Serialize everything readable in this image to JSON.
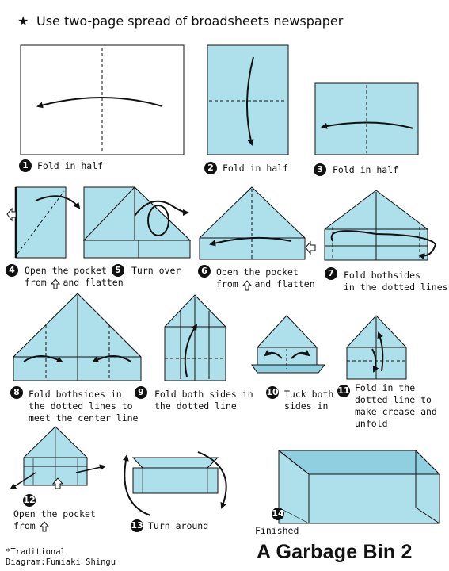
{
  "header": {
    "star_symbol": "★",
    "instruction": "Use two-page spread of broadsheets newspaper"
  },
  "steps": [
    {
      "number": "1",
      "caption": "Fold in half"
    },
    {
      "number": "2",
      "caption": "Fold in half"
    },
    {
      "number": "3",
      "caption": "Fold in half"
    },
    {
      "number": "4",
      "caption": "Open the pocket\nfrom   and flatten"
    },
    {
      "number": "5",
      "caption": "Turn over"
    },
    {
      "number": "6",
      "caption": "Open the pocket\nfrom   and flatten"
    },
    {
      "number": "7",
      "caption": "Fold bothsides\nin the dotted lines"
    },
    {
      "number": "8",
      "caption": "Fold bothsides in\nthe dotted lines to\nmeet the center line"
    },
    {
      "number": "9",
      "caption": "Fold both sides in\nthe dotted line"
    },
    {
      "number": "10",
      "caption": "Tuck both\nsides in"
    },
    {
      "number": "11",
      "caption": "Fold in the\ndotted line to\nmake crease and\nunfold"
    },
    {
      "number": "12",
      "caption": "Open the pocket\nfrom"
    },
    {
      "number": "13",
      "caption": "Turn around"
    },
    {
      "number": "14",
      "caption": "Finished"
    }
  ],
  "footer": {
    "credit_line1": "*Traditional",
    "credit_line2": "Diagram:Fumiaki Shingu",
    "title": "A Garbage Bin 2"
  },
  "colors": {
    "paper": "#aee0ec",
    "paper_dark": "#8fcfe0",
    "outline": "#111111"
  }
}
